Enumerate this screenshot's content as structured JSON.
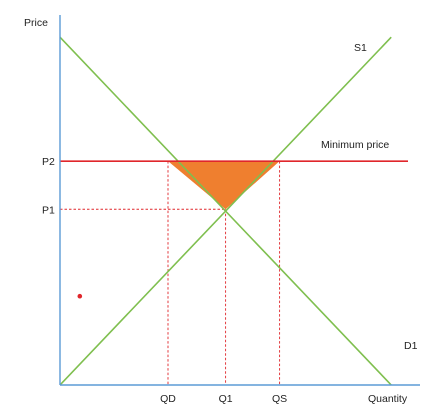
{
  "chart_data": {
    "type": "line",
    "title": "",
    "xlabel": "Quantity",
    "ylabel": "Price",
    "xlim": [
      0,
      10
    ],
    "ylim": [
      0,
      10
    ],
    "grid": false,
    "series": [
      {
        "name": "S1",
        "x": [
          0,
          9.2
        ],
        "y": [
          0,
          9.4
        ],
        "color": "#7fbf4f"
      },
      {
        "name": "D1",
        "x": [
          0,
          9.2
        ],
        "y": [
          9.4,
          0
        ],
        "color": "#7fbf4f"
      }
    ],
    "min_price": {
      "label": "Minimum price",
      "y": 6.05,
      "color": "#e0262b"
    },
    "equilibrium": {
      "x": 4.6,
      "y": 4.75
    },
    "x_ticks": [
      {
        "label": "QD",
        "x": 3.0
      },
      {
        "label": "Q1",
        "x": 4.6
      },
      {
        "label": "QS",
        "x": 6.1
      }
    ],
    "y_ticks": [
      {
        "label": "P2",
        "y": 6.05
      },
      {
        "label": "P1",
        "y": 4.75
      }
    ],
    "shaded_region": {
      "points": [
        [
          3.0,
          6.05
        ],
        [
          6.1,
          6.05
        ],
        [
          4.6,
          4.75
        ]
      ],
      "color": "#ef7f2f"
    },
    "marker": {
      "x": 0.55,
      "y": 2.4,
      "color": "#e0262b"
    },
    "colors": {
      "axis": "#5b9bd5",
      "curve": "#7fbf4f",
      "price_floor": "#e0262b",
      "guide": "#e0262b",
      "surplus": "#ef7f2f"
    }
  }
}
